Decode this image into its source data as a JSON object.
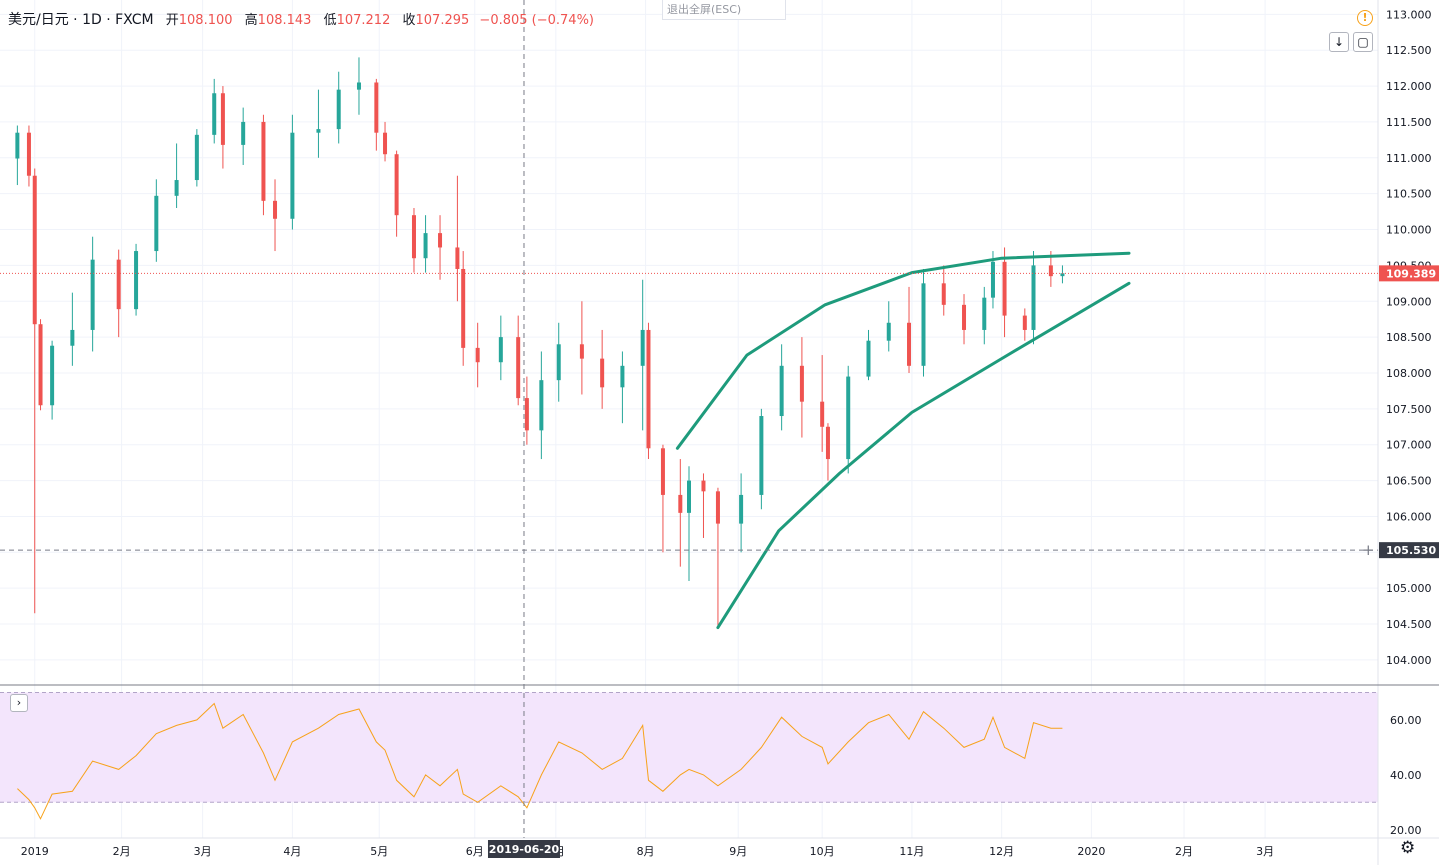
{
  "header": {
    "symbol": "美元/日元 · 1D · FXCM",
    "open_label": "开",
    "open": "108.100",
    "high_label": "高",
    "high": "108.143",
    "low_label": "低",
    "low": "107.212",
    "close_label": "收",
    "close": "107.295",
    "change": "−0.805 (−0.74%)"
  },
  "toolbar": {
    "exit_fullscreen": "退出全屏(ESC)",
    "warning_icon": "warning-icon",
    "scroll_icon": "arrow-down-icon",
    "fullscreen_icon": "fullscreen-icon",
    "indicator_toggle_icon": "chevron-right-icon",
    "settings_icon": "gear-icon"
  },
  "colors": {
    "up": "#26a69a",
    "down": "#ef5350",
    "channel": "#1e9b7c",
    "rsi_line": "#f7a21b",
    "rsi_band": "#f3e5fc",
    "label_bg": "#363a45"
  },
  "chart_data": [
    {
      "type": "candlestick",
      "y_ticks": [
        "113.000",
        "112.500",
        "112.000",
        "111.500",
        "111.000",
        "110.500",
        "110.000",
        "109.500",
        "109.000",
        "108.500",
        "108.000",
        "107.500",
        "107.000",
        "106.500",
        "106.000",
        "105.500",
        "105.000",
        "104.500",
        "104.000"
      ],
      "ylim": [
        103.65,
        113.2
      ],
      "x_ticks": [
        "2019",
        "2月",
        "3月",
        "4月",
        "5月",
        "6月",
        "7月",
        "8月",
        "9月",
        "10月",
        "11月",
        "12月",
        "2020",
        "2月",
        "3月"
      ],
      "crosshair_date": "2019-06-20",
      "crosshair_price": "105.530",
      "last_price": "109.389",
      "ohlc": [
        [
          "2018-12-27",
          110.99,
          111.45,
          110.62,
          111.35
        ],
        [
          "2018-12-31",
          111.35,
          111.45,
          110.6,
          110.75
        ],
        [
          "2019-01-02",
          110.75,
          110.85,
          104.65,
          108.68
        ],
        [
          "2019-01-04",
          108.68,
          108.75,
          107.48,
          107.55
        ],
        [
          "2019-01-08",
          107.55,
          108.45,
          107.35,
          108.38
        ],
        [
          "2019-01-15",
          108.38,
          109.12,
          108.1,
          108.6
        ],
        [
          "2019-01-22",
          108.6,
          109.9,
          108.3,
          109.58
        ],
        [
          "2019-01-31",
          109.58,
          109.72,
          108.5,
          108.89
        ],
        [
          "2019-02-06",
          108.89,
          109.8,
          108.8,
          109.7
        ],
        [
          "2019-02-13",
          109.7,
          110.7,
          109.55,
          110.47
        ],
        [
          "2019-02-20",
          110.47,
          111.2,
          110.3,
          110.69
        ],
        [
          "2019-02-27",
          110.69,
          111.4,
          110.6,
          111.32
        ],
        [
          "2019-03-05",
          111.32,
          112.1,
          111.2,
          111.9
        ],
        [
          "2019-03-08",
          111.9,
          112.0,
          110.85,
          111.18
        ],
        [
          "2019-03-15",
          111.18,
          111.7,
          110.9,
          111.5
        ],
        [
          "2019-03-22",
          111.5,
          111.6,
          110.2,
          110.4
        ],
        [
          "2019-03-26",
          110.4,
          110.7,
          109.7,
          110.15
        ],
        [
          "2019-04-01",
          110.15,
          111.6,
          110.0,
          111.35
        ],
        [
          "2019-04-10",
          111.35,
          111.95,
          111.0,
          111.4
        ],
        [
          "2019-04-17",
          111.4,
          112.2,
          111.2,
          111.95
        ],
        [
          "2019-04-24",
          111.95,
          112.4,
          111.6,
          112.05
        ],
        [
          "2019-04-30",
          112.05,
          112.1,
          111.1,
          111.35
        ],
        [
          "2019-05-03",
          111.35,
          111.5,
          110.95,
          111.05
        ],
        [
          "2019-05-07",
          111.05,
          111.1,
          109.9,
          110.2
        ],
        [
          "2019-05-13",
          110.2,
          110.3,
          109.4,
          109.6
        ],
        [
          "2019-05-17",
          109.6,
          110.2,
          109.4,
          109.95
        ],
        [
          "2019-05-22",
          109.95,
          110.2,
          109.3,
          109.75
        ],
        [
          "2019-05-28",
          109.75,
          110.75,
          109.0,
          109.45
        ],
        [
          "2019-05-30",
          109.45,
          109.7,
          108.1,
          108.35
        ],
        [
          "2019-06-04",
          108.35,
          108.7,
          107.8,
          108.15
        ],
        [
          "2019-06-12",
          108.15,
          108.8,
          107.9,
          108.5
        ],
        [
          "2019-06-18",
          108.5,
          108.8,
          107.55,
          107.65
        ],
        [
          "2019-06-21",
          107.65,
          107.95,
          107.0,
          107.2
        ],
        [
          "2019-06-26",
          107.2,
          108.3,
          106.8,
          107.9
        ],
        [
          "2019-07-02",
          107.9,
          108.7,
          107.6,
          108.4
        ],
        [
          "2019-07-10",
          108.4,
          109.0,
          107.7,
          108.2
        ],
        [
          "2019-07-17",
          108.2,
          108.6,
          107.5,
          107.8
        ],
        [
          "2019-07-24",
          107.8,
          108.3,
          107.3,
          108.1
        ],
        [
          "2019-07-31",
          108.1,
          109.3,
          107.2,
          108.6
        ],
        [
          "2019-08-02",
          108.6,
          108.7,
          106.8,
          106.95
        ],
        [
          "2019-08-07",
          106.95,
          107.0,
          105.5,
          106.3
        ],
        [
          "2019-08-13",
          106.3,
          106.8,
          105.3,
          106.05
        ],
        [
          "2019-08-16",
          106.05,
          106.7,
          105.1,
          106.5
        ],
        [
          "2019-08-21",
          106.5,
          106.6,
          105.7,
          106.35
        ],
        [
          "2019-08-26",
          106.35,
          106.4,
          104.45,
          105.9
        ],
        [
          "2019-09-03",
          105.9,
          106.6,
          105.5,
          106.3
        ],
        [
          "2019-09-10",
          106.3,
          107.5,
          106.1,
          107.4
        ],
        [
          "2019-09-17",
          107.4,
          108.4,
          107.2,
          108.1
        ],
        [
          "2019-09-24",
          108.1,
          108.5,
          107.1,
          107.6
        ],
        [
          "2019-10-01",
          107.6,
          108.25,
          106.9,
          107.25
        ],
        [
          "2019-10-03",
          107.25,
          107.3,
          106.5,
          106.8
        ],
        [
          "2019-10-10",
          106.8,
          108.1,
          106.6,
          107.95
        ],
        [
          "2019-10-17",
          107.95,
          108.6,
          107.9,
          108.45
        ],
        [
          "2019-10-24",
          108.45,
          109.0,
          108.3,
          108.7
        ],
        [
          "2019-10-31",
          108.7,
          109.2,
          108.0,
          108.1
        ],
        [
          "2019-11-05",
          108.1,
          109.45,
          107.95,
          109.25
        ],
        [
          "2019-11-12",
          109.25,
          109.5,
          108.8,
          108.95
        ],
        [
          "2019-11-19",
          108.95,
          109.1,
          108.4,
          108.6
        ],
        [
          "2019-11-26",
          108.6,
          109.2,
          108.4,
          109.05
        ],
        [
          "2019-11-29",
          109.05,
          109.7,
          108.9,
          109.55
        ],
        [
          "2019-12-03",
          109.55,
          109.75,
          108.5,
          108.8
        ],
        [
          "2019-12-10",
          108.8,
          108.9,
          108.45,
          108.6
        ],
        [
          "2019-12-13",
          108.6,
          109.7,
          108.4,
          109.5
        ],
        [
          "2019-12-19",
          109.5,
          109.7,
          109.2,
          109.35
        ],
        [
          "2019-12-23",
          109.35,
          109.5,
          109.25,
          109.39
        ]
      ],
      "channel_upper": [
        [
          "2019-08-12",
          106.95
        ],
        [
          "2019-09-05",
          108.25
        ],
        [
          "2019-10-02",
          108.95
        ],
        [
          "2019-11-01",
          109.4
        ],
        [
          "2019-12-02",
          109.6
        ],
        [
          "2020-01-15",
          109.67
        ]
      ],
      "channel_lower": [
        [
          "2019-08-26",
          104.45
        ],
        [
          "2019-09-16",
          105.8
        ],
        [
          "2019-10-07",
          106.6
        ],
        [
          "2019-11-01",
          107.45
        ],
        [
          "2019-12-02",
          108.2
        ],
        [
          "2020-01-15",
          109.25
        ]
      ]
    },
    {
      "type": "line",
      "series": [
        {
          "name": "",
          "values": [
            [
              "2018-12-27",
              35
            ],
            [
              "2018-12-31",
              31
            ],
            [
              "2019-01-02",
              28
            ],
            [
              "2019-01-04",
              24
            ],
            [
              "2019-01-08",
              33
            ],
            [
              "2019-01-15",
              34
            ],
            [
              "2019-01-22",
              45
            ],
            [
              "2019-01-31",
              42
            ],
            [
              "2019-02-06",
              47
            ],
            [
              "2019-02-13",
              55
            ],
            [
              "2019-02-20",
              58
            ],
            [
              "2019-02-27",
              60
            ],
            [
              "2019-03-05",
              66
            ],
            [
              "2019-03-08",
              57
            ],
            [
              "2019-03-15",
              62
            ],
            [
              "2019-03-22",
              48
            ],
            [
              "2019-03-26",
              38
            ],
            [
              "2019-04-01",
              52
            ],
            [
              "2019-04-10",
              57
            ],
            [
              "2019-04-17",
              62
            ],
            [
              "2019-04-24",
              64
            ],
            [
              "2019-04-30",
              52
            ],
            [
              "2019-05-03",
              49
            ],
            [
              "2019-05-07",
              38
            ],
            [
              "2019-05-13",
              32
            ],
            [
              "2019-05-17",
              40
            ],
            [
              "2019-05-22",
              36
            ],
            [
              "2019-05-28",
              42
            ],
            [
              "2019-05-30",
              33
            ],
            [
              "2019-06-04",
              30
            ],
            [
              "2019-06-12",
              36
            ],
            [
              "2019-06-18",
              32
            ],
            [
              "2019-06-21",
              28
            ],
            [
              "2019-06-26",
              40
            ],
            [
              "2019-07-02",
              52
            ],
            [
              "2019-07-10",
              48
            ],
            [
              "2019-07-17",
              42
            ],
            [
              "2019-07-24",
              46
            ],
            [
              "2019-07-31",
              58
            ],
            [
              "2019-08-02",
              38
            ],
            [
              "2019-08-07",
              34
            ],
            [
              "2019-08-13",
              40
            ],
            [
              "2019-08-16",
              42
            ],
            [
              "2019-08-21",
              40
            ],
            [
              "2019-08-26",
              36
            ],
            [
              "2019-09-03",
              42
            ],
            [
              "2019-09-10",
              50
            ],
            [
              "2019-09-17",
              61
            ],
            [
              "2019-09-24",
              54
            ],
            [
              "2019-10-01",
              50
            ],
            [
              "2019-10-03",
              44
            ],
            [
              "2019-10-10",
              52
            ],
            [
              "2019-10-17",
              59
            ],
            [
              "2019-10-24",
              62
            ],
            [
              "2019-10-31",
              53
            ],
            [
              "2019-11-05",
              63
            ],
            [
              "2019-11-12",
              57
            ],
            [
              "2019-11-19",
              50
            ],
            [
              "2019-11-26",
              53
            ],
            [
              "2019-11-29",
              61
            ],
            [
              "2019-12-03",
              50
            ],
            [
              "2019-12-10",
              46
            ],
            [
              "2019-12-13",
              59
            ],
            [
              "2019-12-19",
              57
            ],
            [
              "2019-12-23",
              57
            ]
          ]
        }
      ],
      "y_ticks": [
        "60.00",
        "40.00",
        "20.00"
      ],
      "ylim": [
        17,
        72
      ],
      "band": [
        30,
        70
      ]
    }
  ]
}
